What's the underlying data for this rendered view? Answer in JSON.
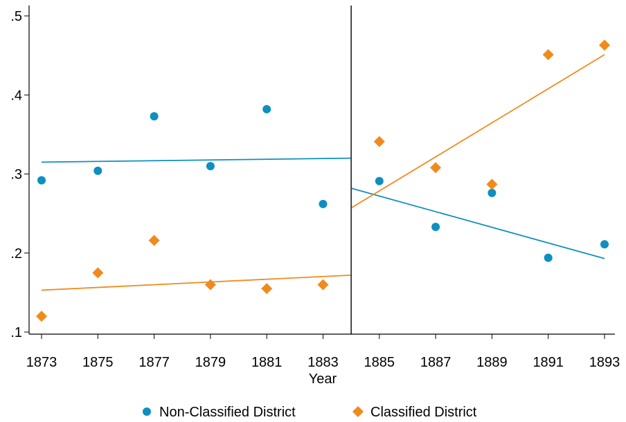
{
  "chart_data": {
    "type": "scatter",
    "title": "",
    "xlabel": "Year",
    "ylabel": "",
    "x_ticks": [
      "1873",
      "1875",
      "1877",
      "1879",
      "1881",
      "1883",
      "1885",
      "1887",
      "1889",
      "1891",
      "1893"
    ],
    "y_ticks": [
      ".1",
      ".2",
      ".3",
      ".4",
      ".5"
    ],
    "xlim": [
      1873,
      1893
    ],
    "ylim": [
      0.1,
      0.5
    ],
    "grid": false,
    "cutoff_year": 1884,
    "legend_position": "bottom",
    "series": [
      {
        "name": "Non-Classified District",
        "color": "#0d8fc0",
        "marker": "circle",
        "points": [
          {
            "x": 1873,
            "y": 0.292
          },
          {
            "x": 1875,
            "y": 0.304
          },
          {
            "x": 1877,
            "y": 0.373
          },
          {
            "x": 1879,
            "y": 0.31
          },
          {
            "x": 1881,
            "y": 0.382
          },
          {
            "x": 1883,
            "y": 0.262
          },
          {
            "x": 1885,
            "y": 0.291
          },
          {
            "x": 1887,
            "y": 0.233
          },
          {
            "x": 1889,
            "y": 0.276
          },
          {
            "x": 1891,
            "y": 0.194
          },
          {
            "x": 1893,
            "y": 0.211
          }
        ],
        "fit_lines": [
          {
            "x": [
              1873,
              1884
            ],
            "y": [
              0.315,
              0.32
            ]
          },
          {
            "x": [
              1884,
              1893
            ],
            "y": [
              0.282,
              0.193
            ]
          }
        ]
      },
      {
        "name": "Classified District",
        "color": "#f18a1c",
        "marker": "diamond",
        "points": [
          {
            "x": 1873,
            "y": 0.12
          },
          {
            "x": 1875,
            "y": 0.175
          },
          {
            "x": 1877,
            "y": 0.216
          },
          {
            "x": 1879,
            "y": 0.16
          },
          {
            "x": 1881,
            "y": 0.155
          },
          {
            "x": 1883,
            "y": 0.16
          },
          {
            "x": 1885,
            "y": 0.341
          },
          {
            "x": 1887,
            "y": 0.308
          },
          {
            "x": 1889,
            "y": 0.287
          },
          {
            "x": 1891,
            "y": 0.451
          },
          {
            "x": 1893,
            "y": 0.463
          }
        ],
        "fit_lines": [
          {
            "x": [
              1873,
              1884
            ],
            "y": [
              0.153,
              0.172
            ]
          },
          {
            "x": [
              1884,
              1893
            ],
            "y": [
              0.257,
              0.451
            ]
          }
        ]
      }
    ]
  }
}
